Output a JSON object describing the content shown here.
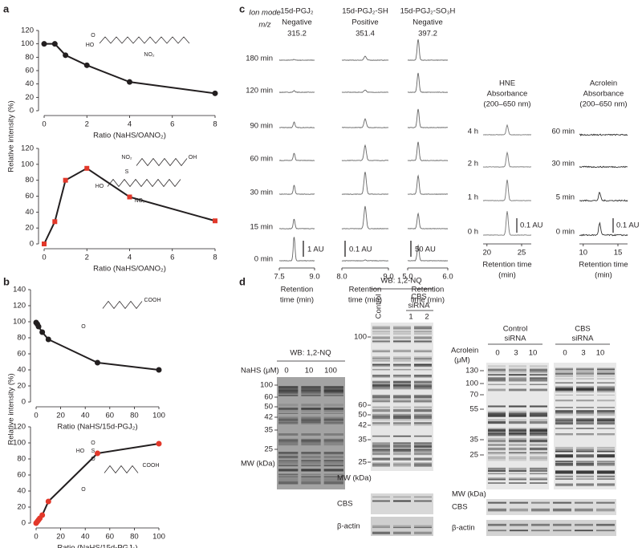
{
  "panel_labels": [
    "a",
    "b",
    "c",
    "d"
  ],
  "chart_data": [
    {
      "type": "line",
      "ylabel": "Relative intensity (%)",
      "xlabel": "Ratio (NaHS/OANO₂)",
      "x": [
        0,
        0.5,
        1,
        2,
        4,
        8
      ],
      "series": [
        {
          "color": "#231f20",
          "marker": "circle",
          "values": [
            100,
            100,
            83,
            68,
            43,
            26
          ]
        }
      ],
      "xlim": [
        0,
        8
      ],
      "xticks": [
        0,
        2,
        4,
        6,
        8
      ],
      "ylim": [
        0,
        120
      ],
      "yticks": [
        0,
        20,
        40,
        60,
        80,
        100,
        120
      ],
      "annotations": [
        "O",
        "HO",
        "NO₂"
      ]
    },
    {
      "type": "line",
      "xlabel": "Ratio (NaHS/OANO₂)",
      "x": [
        0,
        0.5,
        1,
        2,
        4,
        8
      ],
      "series": [
        {
          "color": "#e2382a",
          "marker": "square",
          "values": [
            0,
            28,
            80,
            95,
            59,
            29
          ]
        }
      ],
      "xlim": [
        0,
        8
      ],
      "xticks": [
        0,
        2,
        4,
        6,
        8
      ],
      "ylim": [
        0,
        120
      ],
      "yticks": [
        0,
        20,
        40,
        60,
        80,
        100,
        120
      ],
      "annotations": [
        "NO₂",
        "S",
        "OH",
        "HO",
        "NO₂"
      ]
    },
    {
      "type": "line",
      "ylabel": "Relative intensity (%)",
      "xlabel": "Ratio (NaHS/15d-PGJ₂)",
      "x": [
        0,
        1,
        2,
        5,
        10,
        50,
        100
      ],
      "series": [
        {
          "color": "#231f20",
          "marker": "circle",
          "values": [
            99,
            97,
            94,
            87,
            78,
            49,
            40
          ]
        }
      ],
      "xlim": [
        0,
        100
      ],
      "xticks": [
        0,
        20,
        40,
        60,
        80,
        100
      ],
      "ylim": [
        0,
        140
      ],
      "yticks": [
        0,
        20,
        40,
        60,
        80,
        100,
        120,
        140
      ],
      "annotations": [
        "O",
        "COOH"
      ]
    },
    {
      "type": "line",
      "xlabel": "Ratio (NaHS/15d-PGJ₂)",
      "x": [
        0,
        1,
        2,
        3,
        5,
        10,
        50,
        100
      ],
      "series": [
        {
          "color": "#e2382a",
          "marker": "circle",
          "values": [
            0,
            2,
            4,
            6,
            10,
            27,
            87,
            99
          ]
        }
      ],
      "xlim": [
        0,
        100
      ],
      "xticks": [
        0,
        20,
        40,
        60,
        80,
        100
      ],
      "ylim": [
        0,
        120
      ],
      "yticks": [
        0,
        20,
        40,
        60,
        80,
        100,
        120
      ],
      "annotations": [
        "HO",
        "S",
        "O",
        "O",
        "COOH",
        "O"
      ]
    }
  ],
  "chromatograms": {
    "ion_mode_label": "Ion mode",
    "mz_label": "m/z",
    "times": [
      "180 min",
      "120 min",
      "90 min",
      "60 min",
      "30 min",
      "15 min",
      "0 min"
    ],
    "xlabel": [
      "Retention",
      "time (min)"
    ],
    "columns": [
      {
        "compound": "15d-PGJ₂",
        "color": "#231f20",
        "mode": "Negative",
        "mz": "315.2",
        "scale_bar": "1 AU",
        "ticks": [
          "7.5",
          "9.0"
        ],
        "peaks": [
          1,
          2,
          7,
          9,
          11,
          12,
          30
        ]
      },
      {
        "compound": "15d-PGJ₂-SH",
        "color": "#4a62a8",
        "mode": "Positive",
        "mz": "351.4",
        "scale_bar": "0.1 AU",
        "ticks": [
          "8.0",
          "9.0"
        ],
        "peaks": [
          5,
          3,
          11,
          19,
          28,
          28,
          1
        ]
      },
      {
        "compound": "15d-PGJ₂-SO₃H",
        "color": "#e2382a",
        "mode": "Negative",
        "mz": "397.2",
        "scale_bar": "50 AU",
        "ticks": [
          "5.0",
          "6.0"
        ],
        "peaks": [
          26,
          24,
          23,
          23,
          23,
          19,
          19
        ]
      }
    ]
  },
  "absorbance": {
    "xlabel": [
      "Retention time",
      "(min)"
    ],
    "panels": [
      {
        "title": [
          "HNE",
          "Absorbance",
          "(200–650 nm)"
        ],
        "times": [
          "4 h",
          "2 h",
          "1 h",
          "0 h"
        ],
        "scale_bar": "0.1 AU",
        "ticks": [
          "20",
          "25"
        ],
        "peaks": [
          12,
          18,
          26,
          30
        ]
      },
      {
        "title": [
          "Acrolein",
          "Absorbance",
          "(200–650 nm)"
        ],
        "times": [
          "60 min",
          "30 min",
          "5 min",
          "0 min"
        ],
        "scale_bar": "0.1 AU",
        "ticks": [
          "10",
          "15"
        ],
        "peaks": [
          0,
          0,
          10,
          15
        ]
      }
    ]
  },
  "blots": {
    "left": {
      "header": "WB: 1,2-NQ",
      "treatment": "NaHS (μM)",
      "lanes": [
        "0",
        "10",
        "100"
      ],
      "mw": [
        "100",
        "60",
        "50",
        "42",
        "35",
        "25"
      ],
      "mw_label": "MW (kDa)"
    },
    "middle": {
      "header": "WB: 1,2-NQ",
      "control": "Control",
      "group": [
        "CBS",
        "siRNA"
      ],
      "lanes": [
        "1",
        "2"
      ],
      "mw": [
        "100",
        "60",
        "50",
        "42",
        "35",
        "25"
      ],
      "mw_label": "MW (kDa)",
      "probes": [
        "CBS",
        "β-actin"
      ]
    },
    "right": {
      "groups": [
        [
          "Control",
          "siRNA"
        ],
        [
          "CBS",
          "siRNA"
        ]
      ],
      "treatment": [
        "Acrolein",
        "(μM)"
      ],
      "lanes": [
        "0",
        "3",
        "10",
        "0",
        "3",
        "10"
      ],
      "mw": [
        "130",
        "100",
        "70",
        "55",
        "35",
        "25"
      ],
      "mw_label": "MW (kDa)",
      "probes": [
        "CBS",
        "β-actin"
      ]
    }
  }
}
